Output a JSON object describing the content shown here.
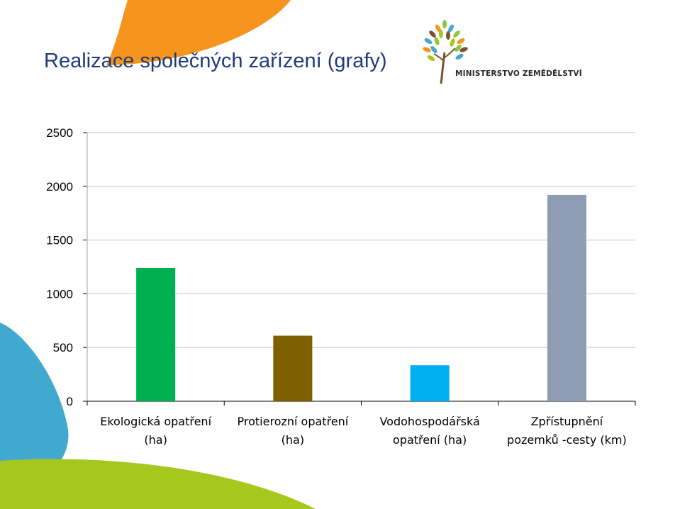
{
  "slide": {
    "title": "Realizace společných zařízení (grafy)"
  },
  "logo": {
    "text": "MINISTERSTVO ZEMĚDĚLSTVÍ",
    "icon": "tree-logo-icon"
  },
  "colors": {
    "title": "#1f3a7a",
    "orange_shape": "#f7941d",
    "blue_shape": "#41a9d0",
    "lime_shape": "#a6c81e",
    "grid": "#d9d9d9"
  },
  "chart_data": {
    "type": "bar",
    "title": "",
    "xlabel": "",
    "ylabel": "",
    "ylim": [
      0,
      2500
    ],
    "yticks": [
      0,
      500,
      1000,
      1500,
      2000,
      2500
    ],
    "grid": true,
    "legend": "none",
    "categories": [
      [
        "Ekologická opatření",
        "(ha)"
      ],
      [
        "Protierozní opatření",
        "(ha)"
      ],
      [
        "Vodohospodářská",
        "opatření (ha)"
      ],
      [
        "Zpřístupnění",
        "pozemků -cesty (km)"
      ]
    ],
    "values": [
      1240,
      610,
      335,
      1920
    ],
    "bar_colors": [
      "#00b050",
      "#7f6000",
      "#00b0f0",
      "#8e9cb4"
    ]
  }
}
